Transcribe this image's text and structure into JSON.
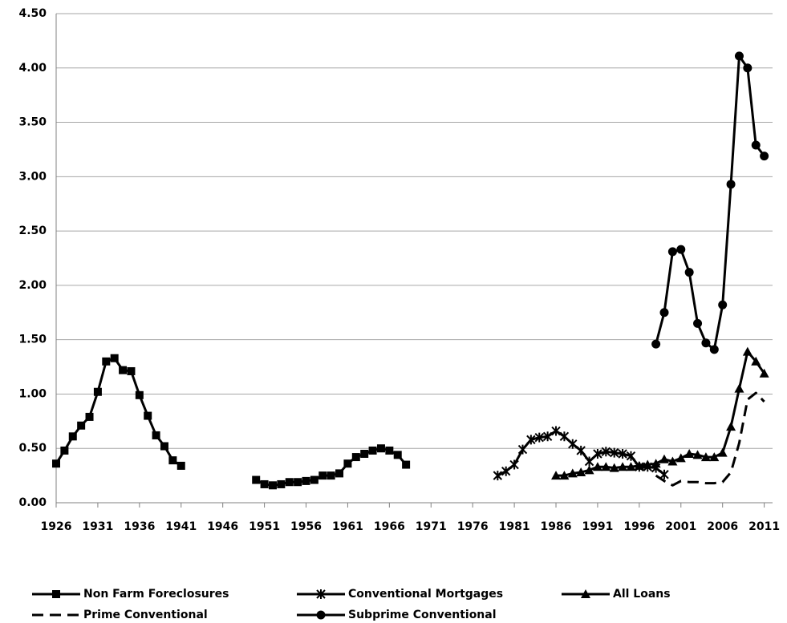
{
  "chart_data": {
    "type": "line",
    "xlim": [
      1926,
      2012
    ],
    "xticks": [
      1926,
      1931,
      1936,
      1941,
      1946,
      1951,
      1956,
      1961,
      1966,
      1971,
      1976,
      1981,
      1986,
      1991,
      1996,
      2001,
      2006,
      2011
    ],
    "ylim": [
      0,
      4.5
    ],
    "yticks": [
      {
        "value": 0,
        "label": "0.00"
      },
      {
        "value": 0.5,
        "label": "0.50"
      },
      {
        "value": 1,
        "label": "1.00"
      },
      {
        "value": 1.5,
        "label": "1.50"
      },
      {
        "value": 2,
        "label": "2.00"
      },
      {
        "value": 2.5,
        "label": "2.50"
      },
      {
        "value": 3,
        "label": "3.00"
      },
      {
        "value": 3.5,
        "label": "3.50"
      },
      {
        "value": 4,
        "label": "4.00"
      },
      {
        "value": 4.5,
        "label": "4.50"
      }
    ],
    "grid": true,
    "legend": "bottom",
    "series": [
      {
        "name": "Non Farm Foreclosures",
        "color": "#000000",
        "marker": "square",
        "dash": false,
        "x": [
          1926,
          1927,
          1928,
          1929,
          1930,
          1931,
          1932,
          1933,
          1934,
          1935,
          1936,
          1937,
          1938,
          1939,
          1940,
          1941,
          1945,
          1950,
          1951,
          1952,
          1953,
          1954,
          1955,
          1956,
          1957,
          1958,
          1959,
          1960,
          1961,
          1962,
          1963,
          1964,
          1965,
          1966,
          1967,
          1968
        ],
        "values": [
          0.36,
          0.48,
          0.61,
          0.71,
          0.79,
          1.02,
          1.3,
          1.33,
          1.22,
          1.21,
          0.99,
          0.8,
          0.62,
          0.52,
          0.39,
          0.34,
          null,
          0.21,
          0.17,
          0.16,
          0.17,
          0.19,
          0.19,
          0.2,
          0.21,
          0.25,
          0.25,
          0.27,
          0.36,
          0.42,
          0.45,
          0.48,
          0.5,
          0.48,
          0.44,
          0.35
        ]
      },
      {
        "name": "Conventional Mortgages",
        "color": "#000000",
        "marker": "star",
        "dash": false,
        "x": [
          1979,
          1980,
          1981,
          1982,
          1983,
          1984,
          1985,
          1986,
          1987,
          1988,
          1989,
          1990,
          1991,
          1992,
          1993,
          1994,
          1995,
          1996,
          1997,
          1998,
          1999
        ],
        "values": [
          0.25,
          0.29,
          0.35,
          0.49,
          0.58,
          0.6,
          0.61,
          0.66,
          0.61,
          0.54,
          0.48,
          0.38,
          0.45,
          0.47,
          0.46,
          0.45,
          0.43,
          0.33,
          0.33,
          0.32,
          0.26
        ]
      },
      {
        "name": "All Loans",
        "color": "#000000",
        "marker": "triangle",
        "dash": false,
        "x": [
          1986,
          1987,
          1988,
          1989,
          1990,
          1991,
          1992,
          1993,
          1994,
          1995,
          1996,
          1997,
          1998,
          1999,
          2000,
          2001,
          2002,
          2003,
          2004,
          2005,
          2006,
          2007,
          2008,
          2009,
          2010,
          2011
        ],
        "values": [
          0.25,
          0.25,
          0.27,
          0.28,
          0.3,
          0.33,
          0.33,
          0.32,
          0.33,
          0.33,
          0.34,
          0.35,
          0.36,
          0.4,
          0.38,
          0.41,
          0.45,
          0.44,
          0.42,
          0.42,
          0.46,
          0.7,
          1.05,
          1.39,
          1.3,
          1.19
        ]
      },
      {
        "name": "Prime Conventional",
        "color": "#000000",
        "marker": "none",
        "dash": true,
        "x": [
          1998,
          1999,
          2000,
          2001,
          2002,
          2003,
          2004,
          2005,
          2006,
          2007,
          2008,
          2009,
          2010,
          2011
        ],
        "values": [
          0.25,
          0.2,
          0.16,
          0.2,
          0.19,
          0.19,
          0.18,
          0.18,
          0.19,
          0.28,
          0.55,
          0.95,
          1.01,
          0.93
        ]
      },
      {
        "name": "Subprime Conventional",
        "color": "#000000",
        "marker": "circle",
        "dash": false,
        "x": [
          1998,
          1999,
          2000,
          2001,
          2002,
          2003,
          2004,
          2005,
          2006,
          2007,
          2008,
          2009,
          2010,
          2011
        ],
        "values": [
          1.46,
          1.75,
          2.31,
          2.33,
          2.12,
          1.65,
          1.47,
          1.41,
          1.82,
          2.93,
          4.11,
          4.0,
          3.29,
          3.19
        ]
      }
    ]
  }
}
